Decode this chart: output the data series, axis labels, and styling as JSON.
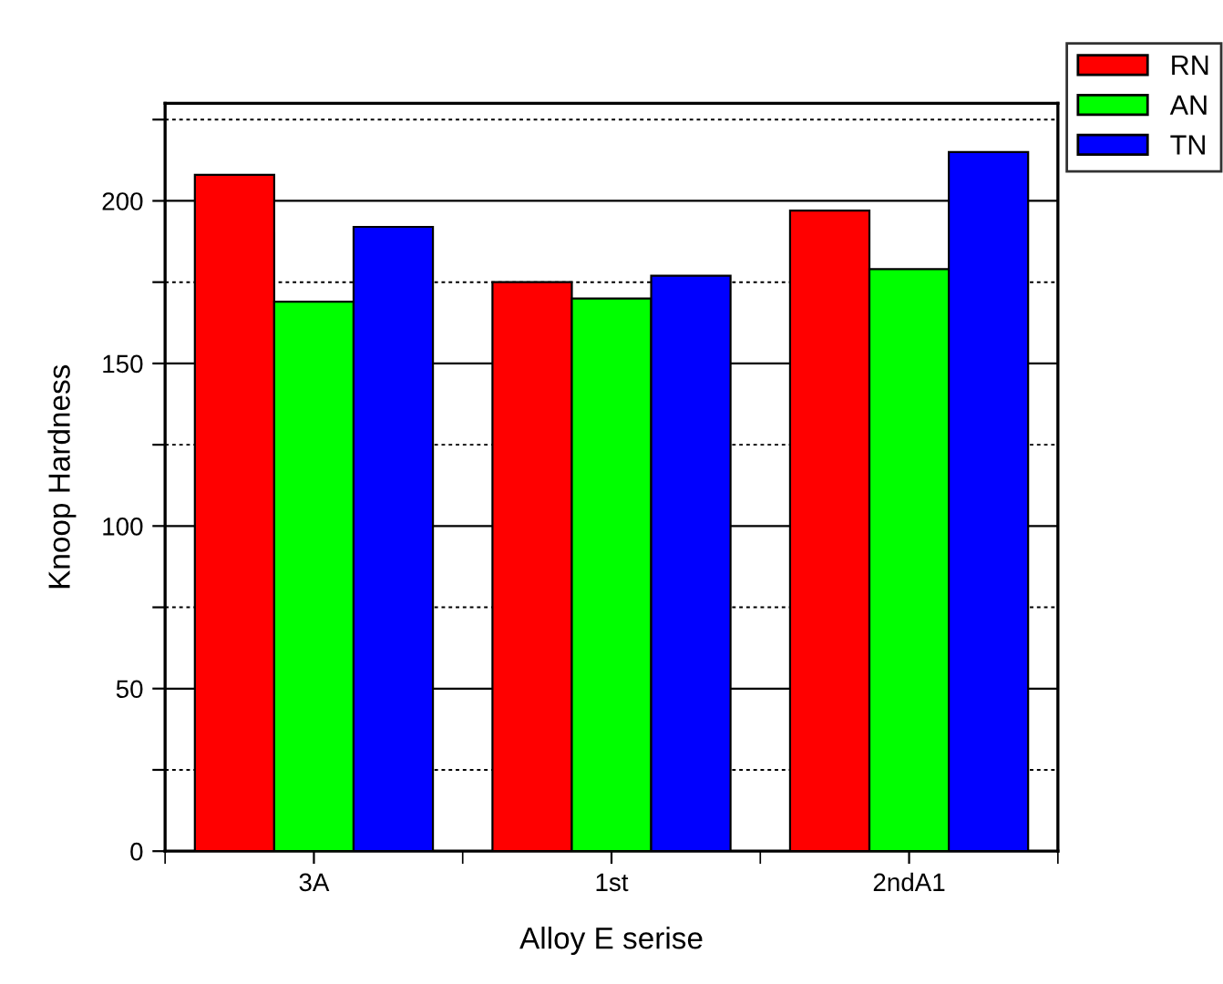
{
  "chart_data": {
    "type": "bar",
    "xlabel": "Alloy E serise",
    "ylabel": "Knoop Hardness",
    "categories": [
      "3A",
      "1st",
      "2ndA1"
    ],
    "series": [
      {
        "name": "RN",
        "color": "#ff0000",
        "values": [
          208,
          175,
          197
        ]
      },
      {
        "name": "AN",
        "color": "#00ff00",
        "values": [
          169,
          170,
          179
        ]
      },
      {
        "name": "TN",
        "color": "#0000ff",
        "values": [
          192,
          177,
          215
        ]
      }
    ],
    "ylim": [
      0,
      230
    ],
    "yticks": [
      0,
      {
        "value": 25,
        "label": null
      },
      50,
      {
        "value": 75,
        "label": null
      },
      100,
      {
        "value": 125,
        "label": null
      },
      150,
      {
        "value": 175,
        "label": null
      },
      200,
      {
        "value": 225,
        "label": null
      }
    ],
    "grid": "y",
    "legend": "top right"
  }
}
